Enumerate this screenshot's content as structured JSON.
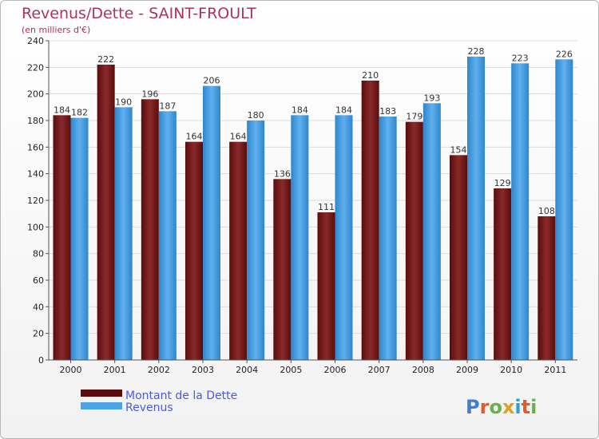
{
  "chart_data": {
    "type": "bar",
    "title": "Revenus/Dette - SAINT-FROULT",
    "subtitle": "(en milliers d'€)",
    "categories": [
      "2000",
      "2001",
      "2002",
      "2003",
      "2004",
      "2005",
      "2006",
      "2007",
      "2008",
      "2009",
      "2010",
      "2011"
    ],
    "series": [
      {
        "name": "Montant de la Dette",
        "values": [
          184,
          222,
          196,
          164,
          164,
          136,
          111,
          210,
          179,
          154,
          129,
          108
        ],
        "color": "#7b1a1a"
      },
      {
        "name": "Revenus",
        "values": [
          182,
          190,
          187,
          206,
          180,
          184,
          184,
          183,
          193,
          228,
          223,
          226
        ],
        "color": "#4aa3e6"
      }
    ],
    "ylim": [
      0,
      240
    ],
    "yticks": [
      0,
      20,
      40,
      60,
      80,
      100,
      120,
      140,
      160,
      180,
      200,
      220,
      240
    ],
    "grid": true,
    "legend": "bottom-left"
  },
  "brand": {
    "text": "Proxiti"
  }
}
